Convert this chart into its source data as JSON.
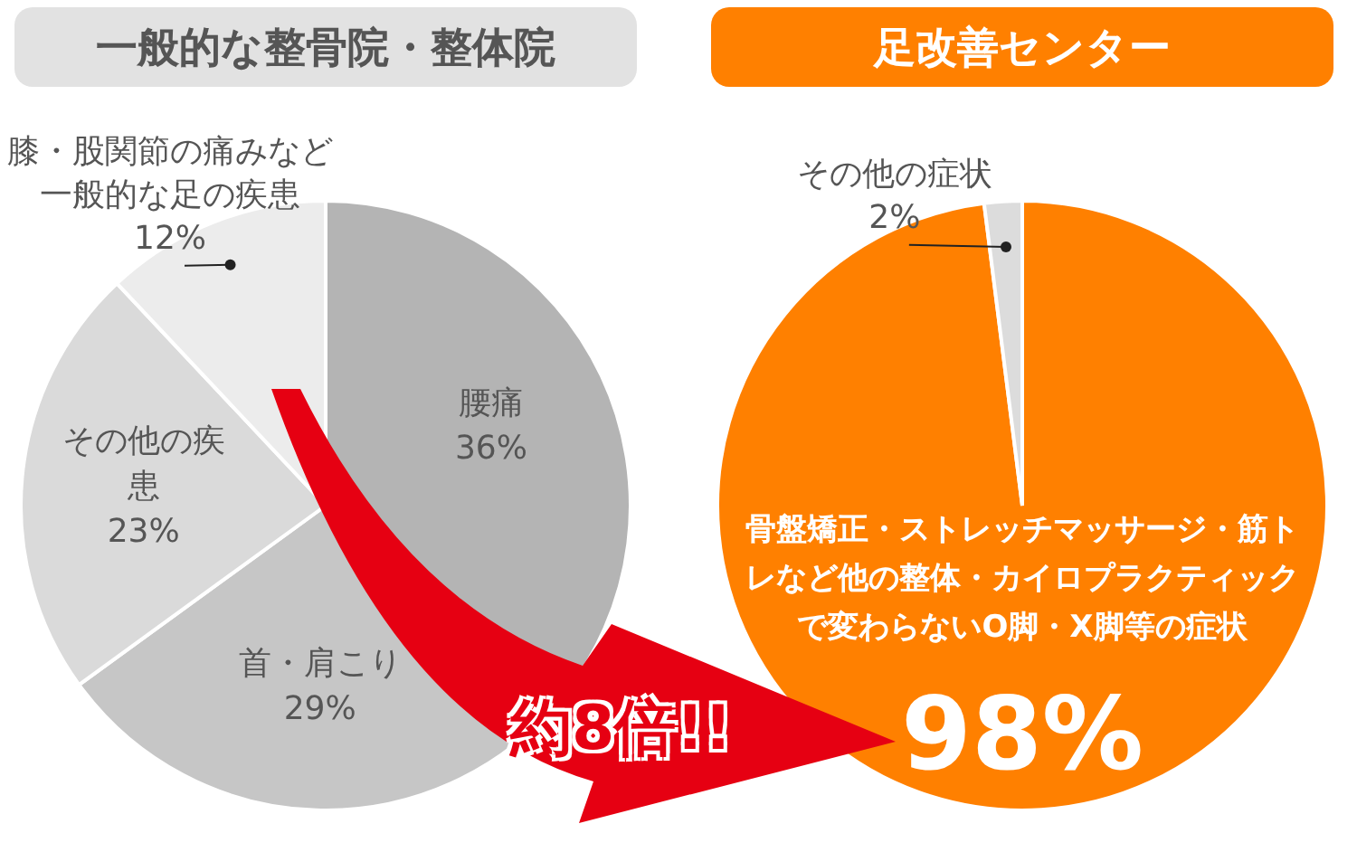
{
  "chart_data": [
    {
      "type": "pie",
      "title": "一般的な整骨院・整体院",
      "categories": [
        "腰痛",
        "首・肩こり",
        "その他の疾患",
        "膝・股関節の痛みなど一般的な足の疾患"
      ],
      "values": [
        36,
        29,
        23,
        12
      ],
      "colors": [
        "#b4b4b4",
        "#c6c6c6",
        "#dadada",
        "#ececec"
      ],
      "value_labels": [
        "36%",
        "29%",
        "23%",
        "12%"
      ],
      "legend": false,
      "annotations": [
        "約8倍!!"
      ]
    },
    {
      "type": "pie",
      "title": "足改善センター",
      "categories": [
        "骨盤矯正・ストレッチマッサージ・筋トレなど他の整体・カイロプラクティックで変わらないO脚・X脚等の症状",
        "その他の症状"
      ],
      "values": [
        98,
        2
      ],
      "colors": [
        "#ff8000",
        "#dcdcdc"
      ],
      "value_labels": [
        "98%",
        "2%"
      ],
      "legend": false
    }
  ]
}
